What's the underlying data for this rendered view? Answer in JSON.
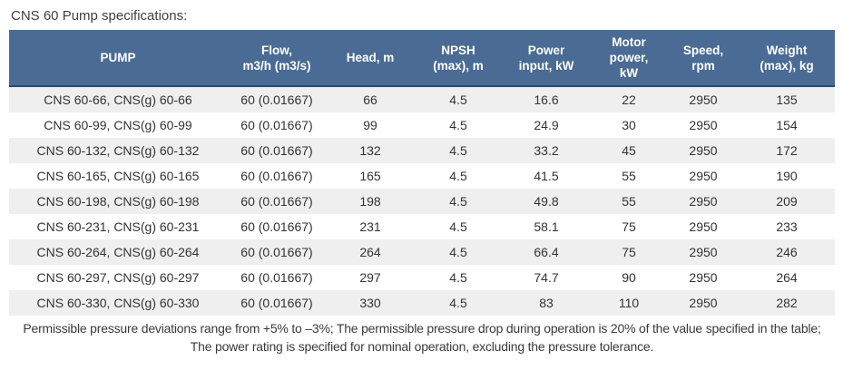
{
  "title": "CNS 60 Pump specifications:",
  "table": {
    "columns": [
      {
        "id": "pump",
        "label": "PUMP"
      },
      {
        "id": "flow",
        "label": "Flow,\nm3/h (m3/s)"
      },
      {
        "id": "head",
        "label": "Head, m"
      },
      {
        "id": "npsh",
        "label": "NPSH\n(max), m"
      },
      {
        "id": "power-input",
        "label": "Power\ninput, kW"
      },
      {
        "id": "motor-power",
        "label": "Motor\npower,\nkW"
      },
      {
        "id": "speed",
        "label": "Speed,\nrpm"
      },
      {
        "id": "weight",
        "label": "Weight\n(max), kg"
      }
    ],
    "rows": [
      [
        "CNS 60-66, CNS(g) 60-66",
        "60 (0.01667)",
        "66",
        "4.5",
        "16.6",
        "22",
        "2950",
        "135"
      ],
      [
        "CNS 60-99, CNS(g) 60-99",
        "60 (0.01667)",
        "99",
        "4.5",
        "24.9",
        "30",
        "2950",
        "154"
      ],
      [
        "CNS 60-132, CNS(g) 60-132",
        "60 (0.01667)",
        "132",
        "4.5",
        "33.2",
        "45",
        "2950",
        "172"
      ],
      [
        "CNS 60-165, CNS(g) 60-165",
        "60 (0.01667)",
        "165",
        "4.5",
        "41.5",
        "55",
        "2950",
        "190"
      ],
      [
        "CNS 60-198, CNS(g) 60-198",
        "60 (0.01667)",
        "198",
        "4.5",
        "49.8",
        "55",
        "2950",
        "209"
      ],
      [
        "CNS 60-231, CNS(g) 60-231",
        "60 (0.01667)",
        "231",
        "4.5",
        "58.1",
        "75",
        "2950",
        "233"
      ],
      [
        "CNS 60-264, CNS(g) 60-264",
        "60 (0.01667)",
        "264",
        "4.5",
        "66.4",
        "75",
        "2950",
        "246"
      ],
      [
        "CNS 60-297, CNS(g) 60-297",
        "60 (0.01667)",
        "297",
        "4.5",
        "74.7",
        "90",
        "2950",
        "264"
      ],
      [
        "CNS 60-330, CNS(g) 60-330",
        "60 (0.01667)",
        "330",
        "4.5",
        "83",
        "110",
        "2950",
        "282"
      ]
    ]
  },
  "colors": {
    "header_bg": "#4a6b94",
    "header_border": "#27496e",
    "row_stripe": "#efefef",
    "text": "#333333"
  },
  "footnote": "Permissible pressure deviations range from +5% to –3%; The permissible pressure drop during operation is 20% of the value specified in the table; The power rating is specified for nominal operation, excluding the pressure tolerance."
}
